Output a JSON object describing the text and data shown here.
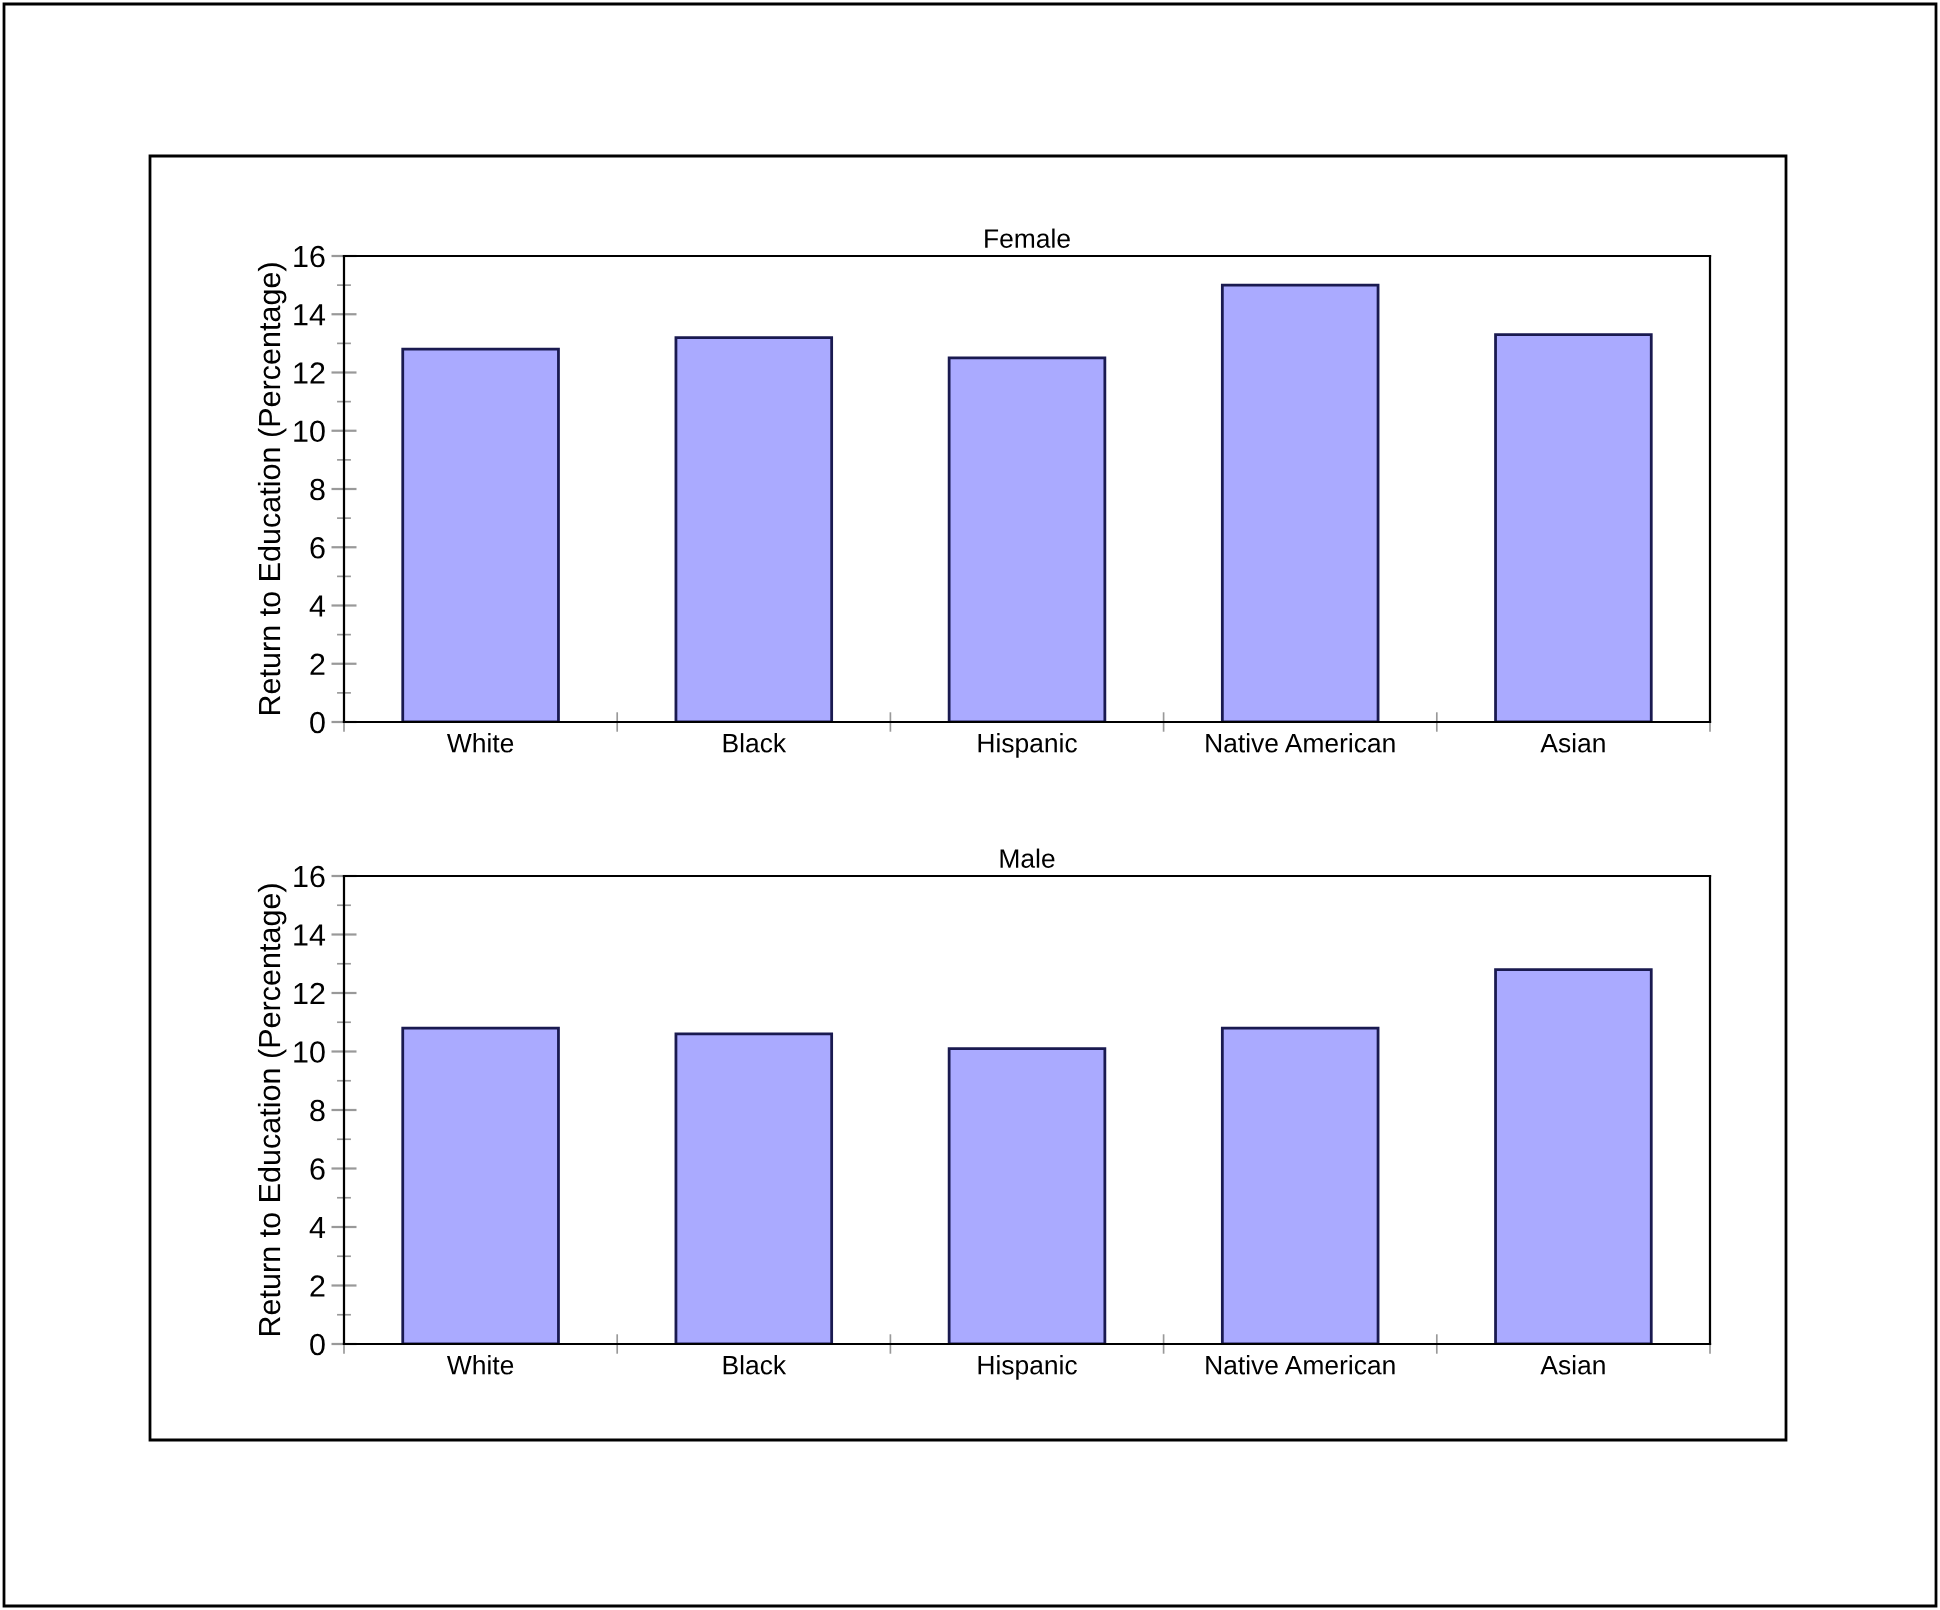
{
  "chart_data": [
    {
      "type": "bar",
      "title": "Female",
      "ylabel": "Return to Education (Percentage)",
      "categories": [
        "White",
        "Black",
        "Hispanic",
        "Native American",
        "Asian"
      ],
      "values": [
        12.8,
        13.2,
        12.5,
        15.0,
        13.3
      ],
      "color": "#aaaaff",
      "ylim": [
        0,
        16
      ],
      "yticks": [
        0,
        2,
        4,
        6,
        8,
        10,
        12,
        14,
        16
      ],
      "grid": false,
      "legend": false
    },
    {
      "type": "bar",
      "title": "Male",
      "ylabel": "Return to Education (Percentage)",
      "categories": [
        "White",
        "Black",
        "Hispanic",
        "Native American",
        "Asian"
      ],
      "values": [
        10.8,
        10.6,
        10.1,
        10.8,
        12.8
      ],
      "color": "#aaaaff",
      "ylim": [
        0,
        16
      ],
      "yticks": [
        0,
        2,
        4,
        6,
        8,
        10,
        12,
        14,
        16
      ],
      "grid": false,
      "legend": false
    }
  ]
}
